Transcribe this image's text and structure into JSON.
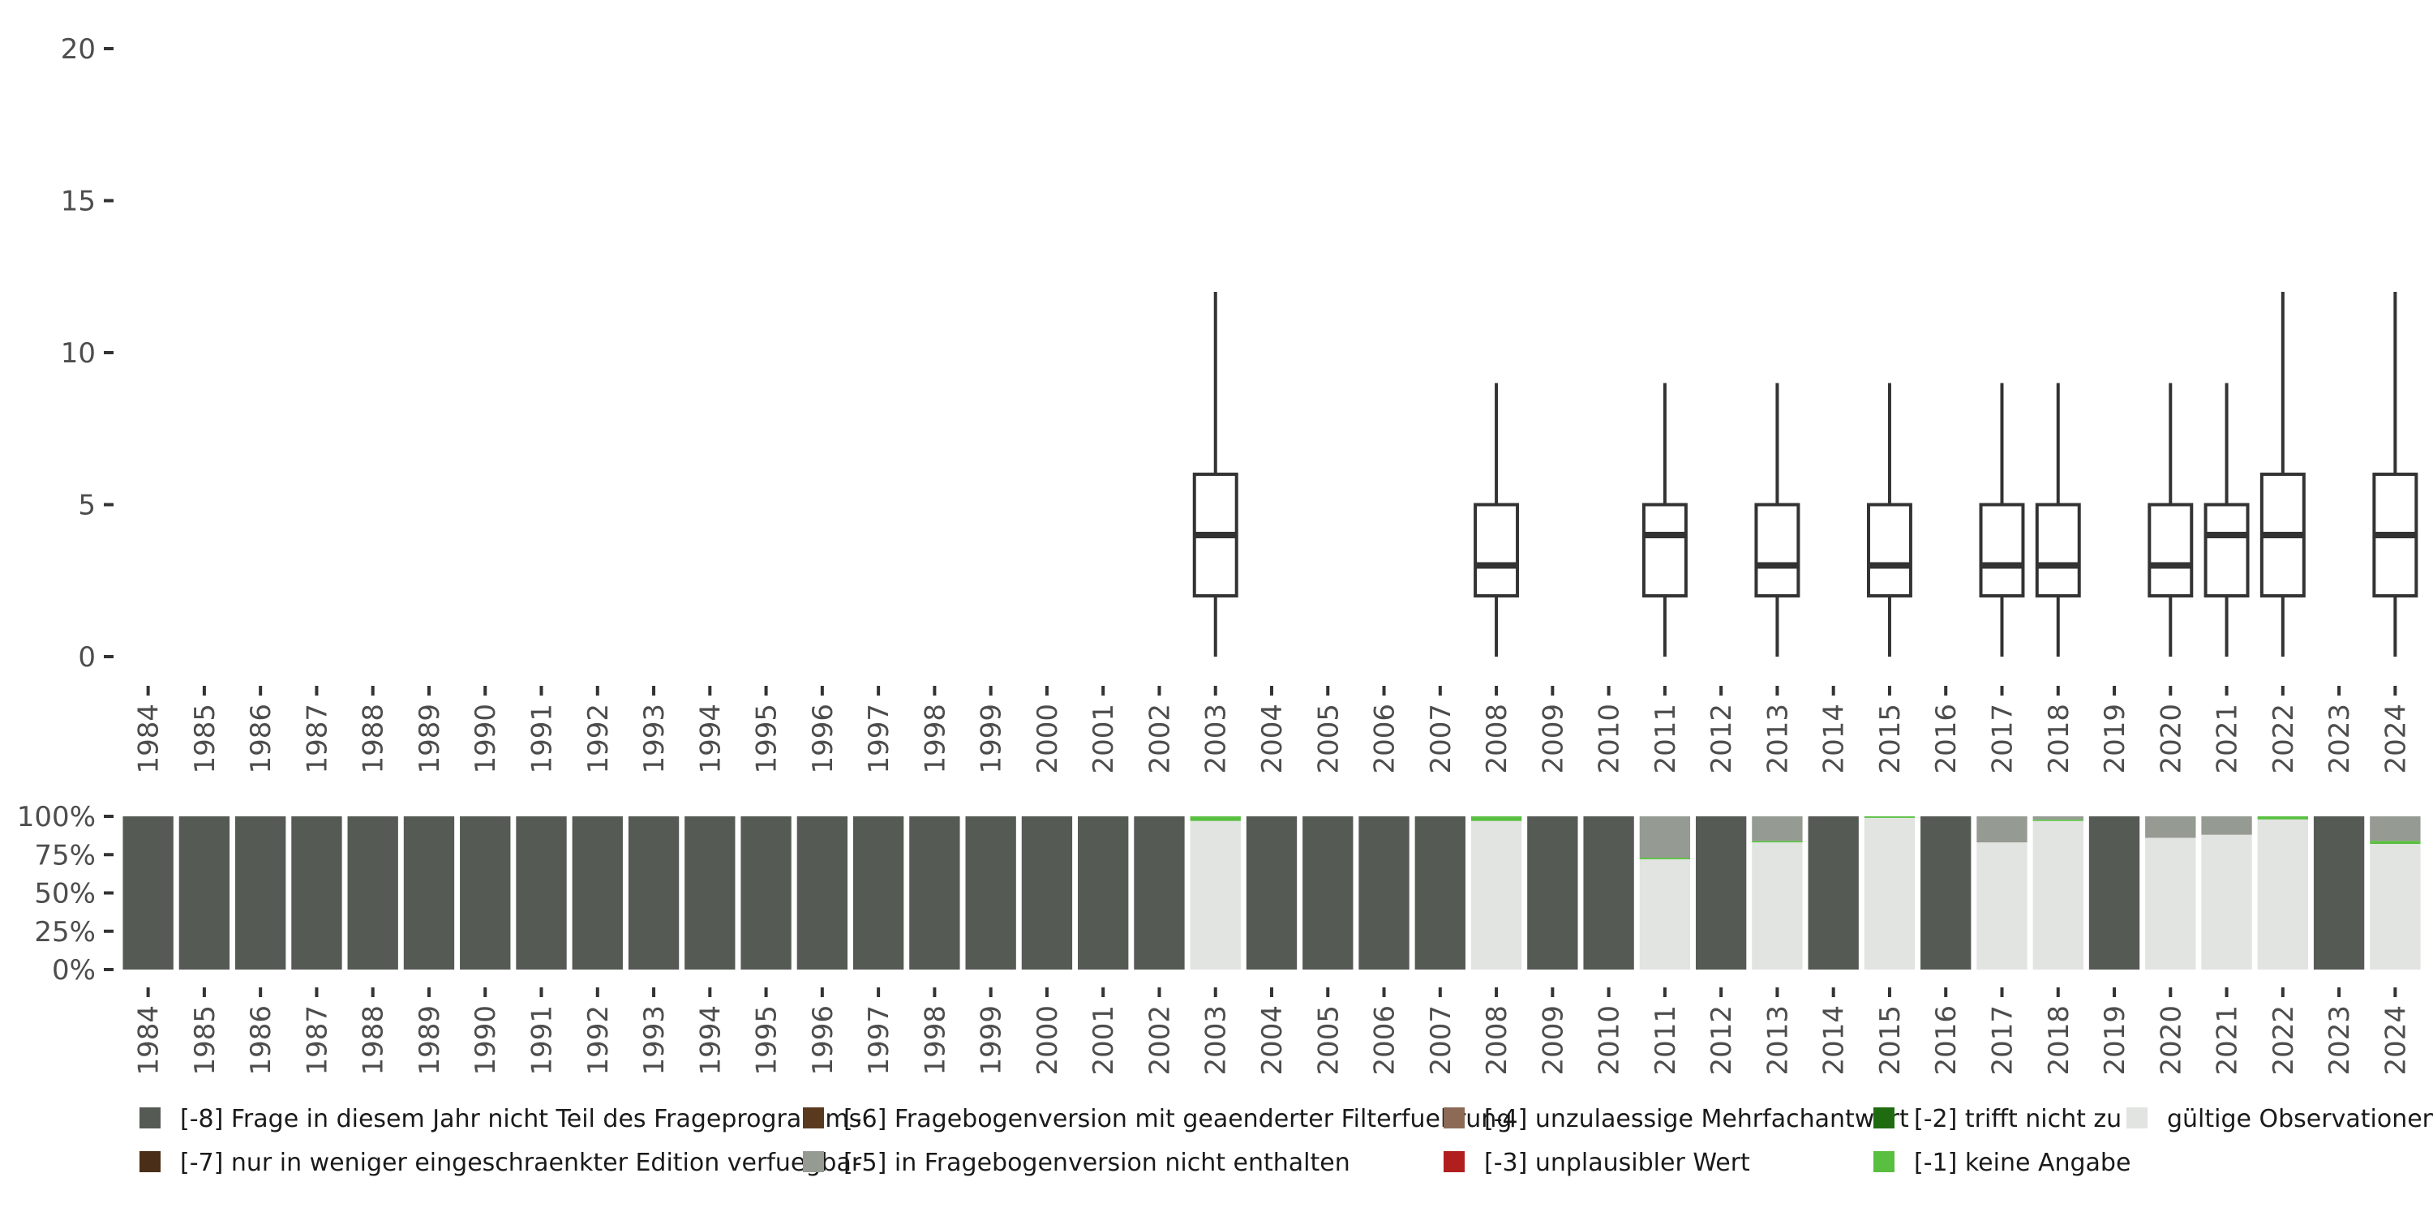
{
  "chart_data": [
    {
      "type": "boxplot",
      "title": "",
      "xlabel": "",
      "ylabel": "",
      "ylim": [
        0,
        20
      ],
      "yticks": [
        "0",
        "5",
        "10",
        "15",
        "20"
      ],
      "ytick_values": [
        0,
        5,
        10,
        15,
        20
      ],
      "categories": [
        "1984",
        "1985",
        "1986",
        "1987",
        "1988",
        "1989",
        "1990",
        "1991",
        "1992",
        "1993",
        "1994",
        "1995",
        "1996",
        "1997",
        "1998",
        "1999",
        "2000",
        "2001",
        "2002",
        "2003",
        "2004",
        "2005",
        "2006",
        "2007",
        "2008",
        "2009",
        "2010",
        "2011",
        "2012",
        "2013",
        "2014",
        "2015",
        "2016",
        "2017",
        "2018",
        "2019",
        "2020",
        "2021",
        "2022",
        "2023",
        "2024"
      ],
      "boxes": [
        {
          "year": "2003",
          "min": 0,
          "q1": 2,
          "median": 4,
          "q3": 6,
          "max": 12
        },
        {
          "year": "2008",
          "min": 0,
          "q1": 2,
          "median": 3,
          "q3": 5,
          "max": 9
        },
        {
          "year": "2011",
          "min": 0,
          "q1": 2,
          "median": 4,
          "q3": 5,
          "max": 9
        },
        {
          "year": "2013",
          "min": 0,
          "q1": 2,
          "median": 3,
          "q3": 5,
          "max": 9
        },
        {
          "year": "2015",
          "min": 0,
          "q1": 2,
          "median": 3,
          "q3": 5,
          "max": 9
        },
        {
          "year": "2017",
          "min": 0,
          "q1": 2,
          "median": 3,
          "q3": 5,
          "max": 9
        },
        {
          "year": "2018",
          "min": 0,
          "q1": 2,
          "median": 3,
          "q3": 5,
          "max": 9
        },
        {
          "year": "2020",
          "min": 0,
          "q1": 2,
          "median": 3,
          "q3": 5,
          "max": 9
        },
        {
          "year": "2021",
          "min": 0,
          "q1": 2,
          "median": 4,
          "q3": 5,
          "max": 9
        },
        {
          "year": "2022",
          "min": 0,
          "q1": 2,
          "median": 4,
          "q3": 6,
          "max": 12
        },
        {
          "year": "2024",
          "min": 0,
          "q1": 2,
          "median": 4,
          "q3": 6,
          "max": 12
        }
      ]
    },
    {
      "type": "bar",
      "stacked": true,
      "title": "",
      "xlabel": "",
      "ylabel": "",
      "ylim": [
        0,
        100
      ],
      "yticks": [
        "0%",
        "25%",
        "50%",
        "75%",
        "100%"
      ],
      "ytick_values": [
        0,
        25,
        50,
        75,
        100
      ],
      "categories": [
        "1984",
        "1985",
        "1986",
        "1987",
        "1988",
        "1989",
        "1990",
        "1991",
        "1992",
        "1993",
        "1994",
        "1995",
        "1996",
        "1997",
        "1998",
        "1999",
        "2000",
        "2001",
        "2002",
        "2003",
        "2004",
        "2005",
        "2006",
        "2007",
        "2008",
        "2009",
        "2010",
        "2011",
        "2012",
        "2013",
        "2014",
        "2015",
        "2016",
        "2017",
        "2018",
        "2019",
        "2020",
        "2021",
        "2022",
        "2023",
        "2024"
      ],
      "series": [
        {
          "key": "valid",
          "name": "gültige Observationen",
          "color": "#e1e4e0",
          "values": [
            0,
            0,
            0,
            0,
            0,
            0,
            0,
            0,
            0,
            0,
            0,
            0,
            0,
            0,
            0,
            0,
            0,
            0,
            0,
            97,
            0,
            0,
            0,
            0,
            97,
            0,
            0,
            72,
            0,
            83,
            0,
            99,
            0,
            83,
            97,
            0,
            86,
            88,
            98,
            0,
            82
          ]
        },
        {
          "key": "m1",
          "name": "[-1] keine Angabe",
          "color": "#59bf40",
          "values": [
            0,
            0,
            0,
            0,
            0,
            0,
            0,
            0,
            0,
            0,
            0,
            0,
            0,
            0,
            0,
            0,
            0,
            0,
            0,
            3,
            0,
            0,
            0,
            0,
            3,
            0,
            0,
            1,
            0,
            1,
            0,
            1,
            0,
            0,
            1,
            0,
            0,
            0,
            2,
            0,
            2
          ]
        },
        {
          "key": "m2",
          "name": "[-2] trifft nicht zu",
          "color": "#1f6b10",
          "values": [
            0,
            0,
            0,
            0,
            0,
            0,
            0,
            0,
            0,
            0,
            0,
            0,
            0,
            0,
            0,
            0,
            0,
            0,
            0,
            0,
            0,
            0,
            0,
            0,
            0,
            0,
            0,
            0,
            0,
            0,
            0,
            0,
            0,
            0,
            0,
            0,
            0,
            0,
            0,
            0,
            0
          ]
        },
        {
          "key": "m3",
          "name": "[-3] unplausibler Wert",
          "color": "#b01e1e",
          "values": [
            0,
            0,
            0,
            0,
            0,
            0,
            0,
            0,
            0,
            0,
            0,
            0,
            0,
            0,
            0,
            0,
            0,
            0,
            0,
            0,
            0,
            0,
            0,
            0,
            0,
            0,
            0,
            0,
            0,
            0,
            0,
            0,
            0,
            0,
            0,
            0,
            0,
            0,
            0,
            0,
            0
          ]
        },
        {
          "key": "m4",
          "name": "[-4] unzulaessige Mehrfachantwort",
          "color": "#8c6a55",
          "values": [
            0,
            0,
            0,
            0,
            0,
            0,
            0,
            0,
            0,
            0,
            0,
            0,
            0,
            0,
            0,
            0,
            0,
            0,
            0,
            0,
            0,
            0,
            0,
            0,
            0,
            0,
            0,
            0,
            0,
            0,
            0,
            0,
            0,
            0,
            0,
            0,
            0,
            0,
            0,
            0,
            0
          ]
        },
        {
          "key": "m5",
          "name": "[-5] in Fragebogenversion nicht enthalten",
          "color": "#959a92",
          "values": [
            0,
            0,
            0,
            0,
            0,
            0,
            0,
            0,
            0,
            0,
            0,
            0,
            0,
            0,
            0,
            0,
            0,
            0,
            0,
            0,
            0,
            0,
            0,
            0,
            0,
            0,
            0,
            27,
            0,
            16,
            0,
            0,
            0,
            17,
            2,
            0,
            14,
            12,
            0,
            0,
            16
          ]
        },
        {
          "key": "m6",
          "name": "[-6] Fragebogenversion mit geaenderter Filterfuehrung",
          "color": "#5a3a1f",
          "values": [
            0,
            0,
            0,
            0,
            0,
            0,
            0,
            0,
            0,
            0,
            0,
            0,
            0,
            0,
            0,
            0,
            0,
            0,
            0,
            0,
            0,
            0,
            0,
            0,
            0,
            0,
            0,
            0,
            0,
            0,
            0,
            0,
            0,
            0,
            0,
            0,
            0,
            0,
            0,
            0,
            0
          ]
        },
        {
          "key": "m7",
          "name": "[-7] nur in weniger eingeschraenkter Edition verfuegbar",
          "color": "#4b2e18",
          "values": [
            0,
            0,
            0,
            0,
            0,
            0,
            0,
            0,
            0,
            0,
            0,
            0,
            0,
            0,
            0,
            0,
            0,
            0,
            0,
            0,
            0,
            0,
            0,
            0,
            0,
            0,
            0,
            0,
            0,
            0,
            0,
            0,
            0,
            0,
            0,
            0,
            0,
            0,
            0,
            0,
            0
          ]
        },
        {
          "key": "m8",
          "name": "[-8] Frage in diesem Jahr nicht Teil des Frageprogramms",
          "color": "#555a55",
          "values": [
            100,
            100,
            100,
            100,
            100,
            100,
            100,
            100,
            100,
            100,
            100,
            100,
            100,
            100,
            100,
            100,
            100,
            100,
            100,
            0,
            100,
            100,
            100,
            100,
            0,
            100,
            100,
            0,
            100,
            0,
            100,
            0,
            100,
            0,
            0,
            100,
            0,
            0,
            0,
            100,
            0
          ]
        }
      ]
    }
  ],
  "legend": {
    "placement": "bottom",
    "items": [
      {
        "label": "[-8] Frage in diesem Jahr nicht Teil des Frageprogramms",
        "color": "#555a55"
      },
      {
        "label": "[-7] nur in weniger eingeschraenkter Edition verfuegbar",
        "color": "#4b2e18"
      },
      {
        "label": "[-6] Fragebogenversion mit geaenderter Filterfuehrung",
        "color": "#5a3a1f"
      },
      {
        "label": "[-5] in Fragebogenversion nicht enthalten",
        "color": "#959a92"
      },
      {
        "label": "[-4] unzulaessige Mehrfachantwort",
        "color": "#8c6a55"
      },
      {
        "label": "[-3] unplausibler Wert",
        "color": "#b01e1e"
      },
      {
        "label": "[-2] trifft nicht zu",
        "color": "#1f6b10"
      },
      {
        "label": "[-1] keine Angabe",
        "color": "#59bf40"
      },
      {
        "label": "gültige Observationen",
        "color": "#e1e4e0"
      }
    ]
  }
}
